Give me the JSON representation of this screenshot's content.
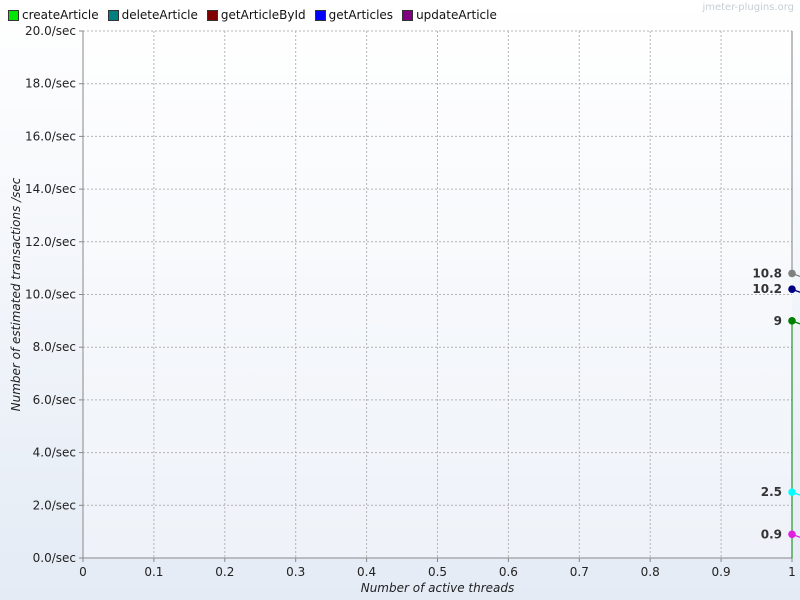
{
  "watermark": "jmeter-plugins.org",
  "legend": [
    {
      "name": "createArticle",
      "color": "#00e600"
    },
    {
      "name": "deleteArticle",
      "color": "#008080"
    },
    {
      "name": "getArticleById",
      "color": "#800000"
    },
    {
      "name": "getArticles",
      "color": "#0000ff"
    },
    {
      "name": "updateArticle",
      "color": "#800080"
    }
  ],
  "chart_data": {
    "type": "line",
    "xlabel": "Number of active threads",
    "ylabel": "Number of estimated transactions /sec",
    "xlim": [
      0,
      1
    ],
    "ylim": [
      0,
      20
    ],
    "x_ticks": [
      "0",
      "0.1",
      "0.2",
      "0.3",
      "0.4",
      "0.5",
      "0.6",
      "0.7",
      "0.8",
      "0.9",
      "1"
    ],
    "y_ticks": [
      "0.0/sec",
      "2.0/sec",
      "4.0/sec",
      "6.0/sec",
      "8.0/sec",
      "10.0/sec",
      "12.0/sec",
      "14.0/sec",
      "16.0/sec",
      "18.0/sec",
      "20.0/sec"
    ],
    "grid": true,
    "legend_position": "top",
    "points": [
      {
        "x": 1,
        "y": 10.8,
        "label": "10.8",
        "color": "#808080"
      },
      {
        "x": 1,
        "y": 10.2,
        "label": "10.2",
        "color": "#000080"
      },
      {
        "x": 1,
        "y": 9,
        "label": "9",
        "color": "#008000"
      },
      {
        "x": 1,
        "y": 2.5,
        "label": "2.5",
        "color": "#00ffff"
      },
      {
        "x": 1,
        "y": 0.9,
        "label": "0.9",
        "color": "#e020e0"
      }
    ],
    "vertical_segments": [
      {
        "x": 1,
        "y_from": 20,
        "y_to": 10.8,
        "color": "#808080"
      },
      {
        "x": 1,
        "y_from": 9,
        "y_to": 0,
        "color": "#008000"
      }
    ]
  }
}
